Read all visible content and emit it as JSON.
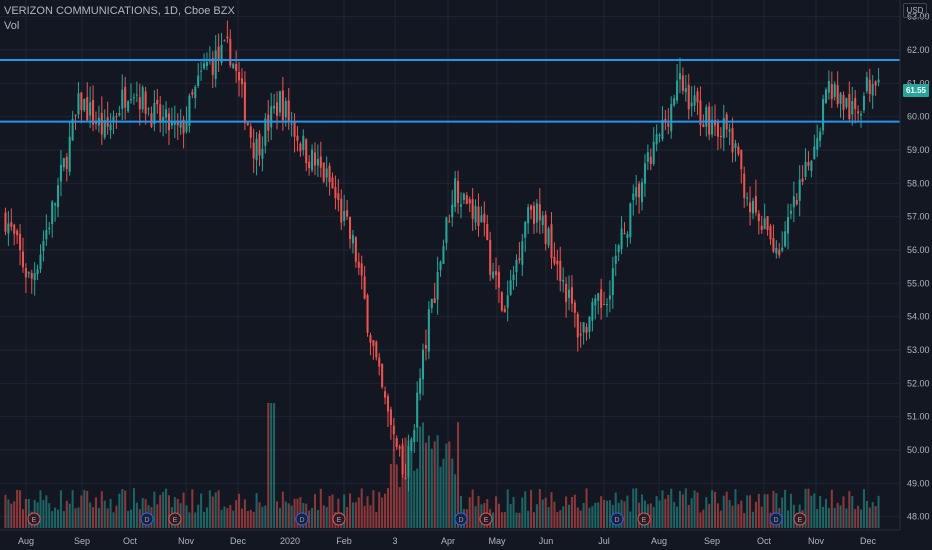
{
  "header": {
    "title": "VERIZON COMMUNICATIONS, 1D, Cboe BZX",
    "volume_label": "Vol"
  },
  "currency_label": "USD",
  "current_price_label": "61.55",
  "colors": {
    "background": "#131722",
    "up": "#26a69a",
    "down": "#ef5350",
    "level_line": "#2196f3",
    "grid": "#1f2433"
  },
  "chart_data": {
    "type": "candlestick",
    "title": "VERIZON COMMUNICATIONS, 1D, Cboe BZX",
    "ylim": [
      47.6,
      63.5
    ],
    "y_ticks": [
      "48.00",
      "49.00",
      "50.00",
      "51.00",
      "52.00",
      "53.00",
      "54.00",
      "55.00",
      "56.00",
      "57.00",
      "58.00",
      "59.00",
      "60.00",
      "61.00",
      "62.00",
      "63.00"
    ],
    "x_ticks": [
      "Aug",
      "Sep",
      "Oct",
      "Nov",
      "Dec",
      "2020",
      "Feb",
      "3",
      "Apr",
      "May",
      "Jun",
      "Jul",
      "Aug",
      "Sep",
      "Oct",
      "Nov",
      "Dec"
    ],
    "horizontal_levels": [
      61.7,
      59.85
    ],
    "last_price": 61.55,
    "event_markers": [
      {
        "type": "E",
        "date": "Aug"
      },
      {
        "type": "D",
        "date": "Oct"
      },
      {
        "type": "E",
        "date": "Oct"
      },
      {
        "type": "D",
        "date": "Jan"
      },
      {
        "type": "E",
        "date": "Jan"
      },
      {
        "type": "D",
        "date": "Apr"
      },
      {
        "type": "E",
        "date": "Apr"
      },
      {
        "type": "D",
        "date": "Jul"
      },
      {
        "type": "E",
        "date": "Jul"
      },
      {
        "type": "D",
        "date": "Oct"
      },
      {
        "type": "E",
        "date": "Oct"
      }
    ],
    "price_path_keypoints": [
      [
        "Jul-19",
        57.0
      ],
      [
        "Aug-19",
        55.0
      ],
      [
        "Sep-19",
        57.5
      ],
      [
        "Sep-19",
        60.5
      ],
      [
        "Oct-19",
        59.5
      ],
      [
        "Oct-19",
        61.0
      ],
      [
        "Nov-19",
        60.0
      ],
      [
        "Dec-19",
        59.5
      ],
      [
        "Dec-19",
        61.5
      ],
      [
        "Dec-19",
        62.0
      ],
      [
        "Jan-20",
        59.0
      ],
      [
        "Jan-20",
        60.5
      ],
      [
        "Feb-20",
        59.0
      ],
      [
        "Feb-20",
        58.0
      ],
      [
        "Mar-20",
        56.0
      ],
      [
        "Mar-20",
        52.0
      ],
      [
        "Mar-20",
        49.0
      ],
      [
        "Apr-20",
        54.0
      ],
      [
        "Apr-20",
        58.0
      ],
      [
        "May-20",
        57.0
      ],
      [
        "May-20",
        54.0
      ],
      [
        "Jun-20",
        57.5
      ],
      [
        "Jun-20",
        56.0
      ],
      [
        "Jul-20",
        53.5
      ],
      [
        "Jul-20",
        54.5
      ],
      [
        "Aug-20",
        57.0
      ],
      [
        "Aug-20",
        59.0
      ],
      [
        "Sep-20",
        61.0
      ],
      [
        "Sep-20",
        60.0
      ],
      [
        "Oct-20",
        59.5
      ],
      [
        "Oct-20",
        57.0
      ],
      [
        "Oct-20",
        56.0
      ],
      [
        "Nov-20",
        58.0
      ],
      [
        "Nov-20",
        61.0
      ],
      [
        "Nov-20",
        60.0
      ],
      [
        "Dec-20",
        61.55
      ]
    ]
  }
}
